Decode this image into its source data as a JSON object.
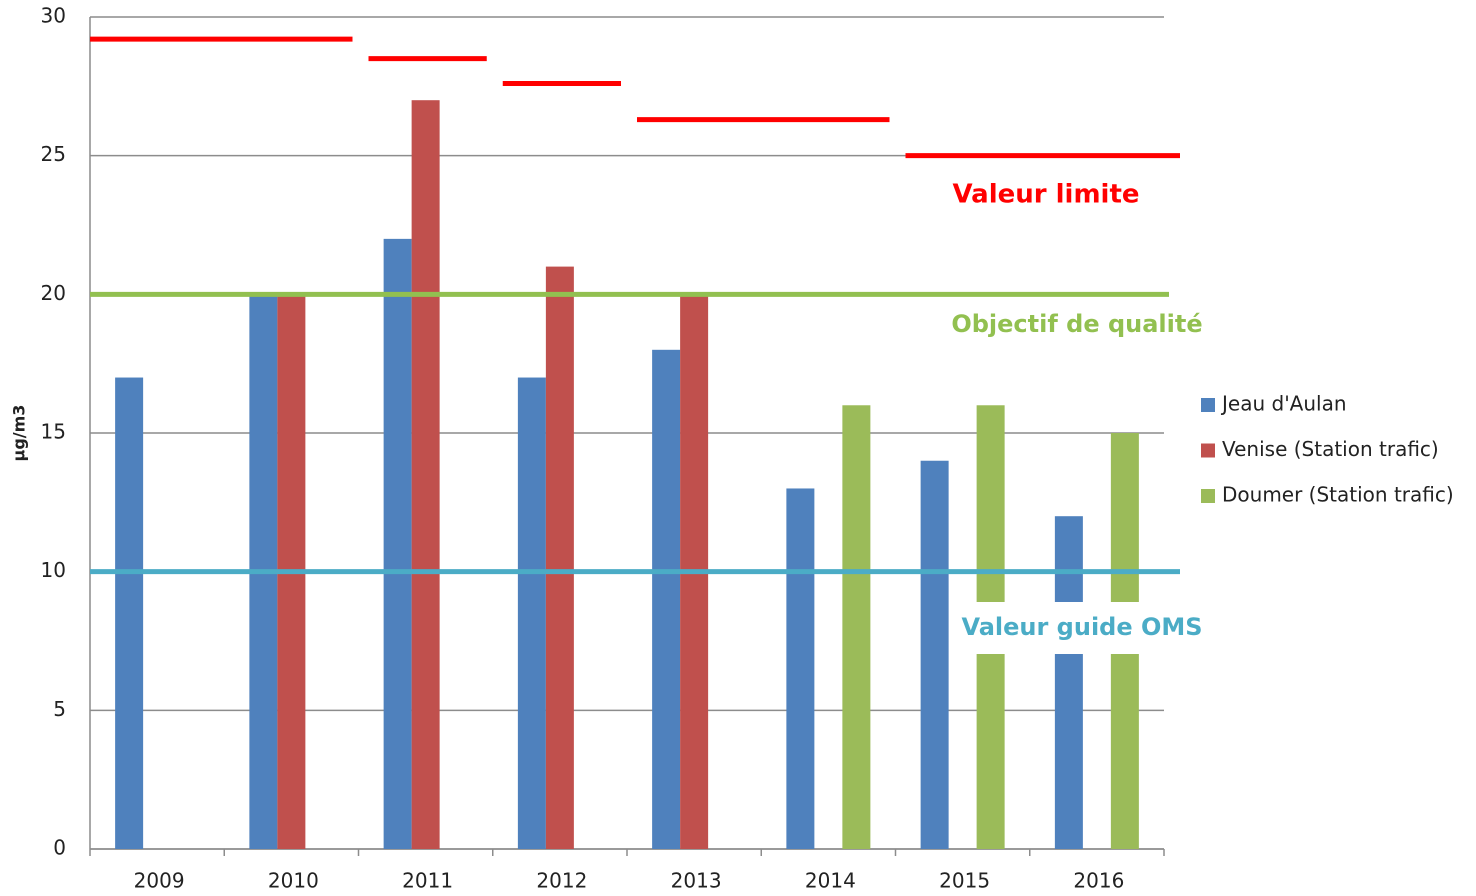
{
  "chart_data": {
    "type": "bar",
    "categories": [
      "2009",
      "2010",
      "2011",
      "2012",
      "2013",
      "2014",
      "2015",
      "2016"
    ],
    "series": [
      {
        "name": "Jeau d'Aulan",
        "color": "#4f81bd",
        "values": [
          17,
          20,
          22,
          17,
          18,
          13,
          14,
          12
        ]
      },
      {
        "name": "Venise (Station trafic)",
        "color": "#c0504d",
        "values": [
          null,
          20,
          27,
          21,
          20,
          null,
          null,
          null
        ]
      },
      {
        "name": "Doumer (Station trafic)",
        "color": "#9bbb59",
        "values": [
          null,
          null,
          null,
          null,
          null,
          16,
          16,
          15
        ]
      }
    ],
    "reference_lines": [
      {
        "name": "Valeur limite",
        "color": "#ff0000",
        "values": [
          29.2,
          29.2,
          28.5,
          27.6,
          26.3,
          26.3,
          25,
          25
        ]
      },
      {
        "name": "Objectif de qualité",
        "color": "#92c050",
        "values": [
          20,
          20,
          20,
          20,
          20,
          20,
          20,
          20
        ]
      },
      {
        "name": "Valeur guide OMS",
        "color": "#4bacc6",
        "values": [
          10,
          10,
          10,
          10,
          10,
          10,
          10,
          10
        ]
      }
    ],
    "ylabel": "µg/m3",
    "ylim": [
      0,
      30
    ],
    "yticks": [
      0,
      5,
      10,
      15,
      20,
      25,
      30
    ],
    "grid": true,
    "legend": "right"
  }
}
